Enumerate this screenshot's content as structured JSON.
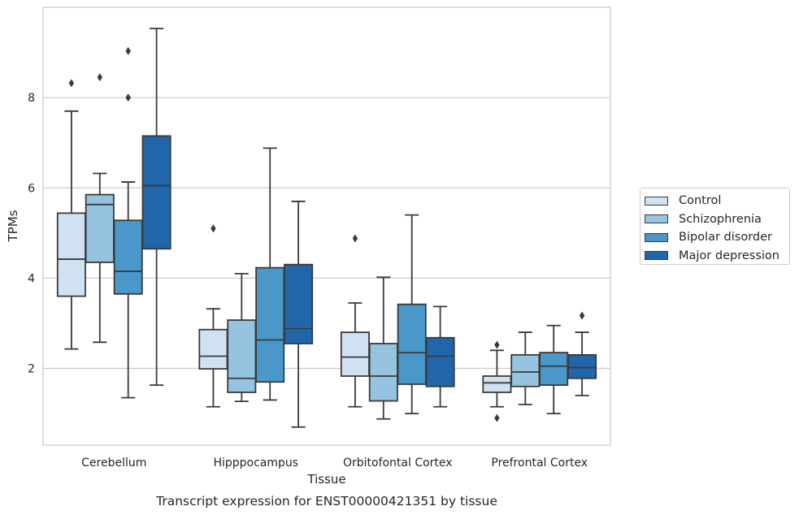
{
  "chart_data": {
    "type": "box",
    "caption": "Transcript expression for ENST00000421351 by tissue",
    "xlabel": "Tissue",
    "ylabel": "TPMs",
    "ylim": [
      0.3,
      10.0
    ],
    "yticks": [
      2,
      4,
      6,
      8
    ],
    "grid": "horizontal",
    "legend_position": "right",
    "categories": [
      "Cerebellum",
      "Hipppocampus",
      "Orbitofontal Cortex",
      "Prefrontal Cortex"
    ],
    "series": [
      {
        "name": "Control",
        "color": "#d0e1f2",
        "boxes": [
          {
            "whisker_low": 2.43,
            "q1": 3.6,
            "median": 4.42,
            "q3": 5.44,
            "whisker_high": 7.7,
            "outliers": [
              8.32
            ]
          },
          {
            "whisker_low": 1.15,
            "q1": 1.99,
            "median": 2.27,
            "q3": 2.86,
            "whisker_high": 3.32,
            "outliers": [
              5.1
            ]
          },
          {
            "whisker_low": 1.15,
            "q1": 1.83,
            "median": 2.25,
            "q3": 2.8,
            "whisker_high": 3.45,
            "outliers": [
              4.88
            ]
          },
          {
            "whisker_low": 1.15,
            "q1": 1.47,
            "median": 1.68,
            "q3": 1.83,
            "whisker_high": 2.4,
            "outliers": [
              2.52,
              0.9
            ]
          }
        ]
      },
      {
        "name": "Schizophrenia",
        "color": "#94c4df",
        "boxes": [
          {
            "whisker_low": 2.58,
            "q1": 4.35,
            "median": 5.63,
            "q3": 5.85,
            "whisker_high": 6.32,
            "outliers": [
              8.45
            ]
          },
          {
            "whisker_low": 1.27,
            "q1": 1.47,
            "median": 1.78,
            "q3": 3.07,
            "whisker_high": 4.1,
            "outliers": []
          },
          {
            "whisker_low": 0.88,
            "q1": 1.28,
            "median": 1.83,
            "q3": 2.55,
            "whisker_high": 4.02,
            "outliers": []
          },
          {
            "whisker_low": 1.2,
            "q1": 1.6,
            "median": 1.92,
            "q3": 2.3,
            "whisker_high": 2.8,
            "outliers": []
          }
        ]
      },
      {
        "name": "Bipolar disorder",
        "color": "#4a98c9",
        "boxes": [
          {
            "whisker_low": 1.35,
            "q1": 3.65,
            "median": 4.15,
            "q3": 5.28,
            "whisker_high": 6.13,
            "outliers": [
              9.03,
              8.0
            ]
          },
          {
            "whisker_low": 1.3,
            "q1": 1.7,
            "median": 2.63,
            "q3": 4.23,
            "whisker_high": 6.88,
            "outliers": []
          },
          {
            "whisker_low": 1.0,
            "q1": 1.65,
            "median": 2.35,
            "q3": 3.42,
            "whisker_high": 5.4,
            "outliers": []
          },
          {
            "whisker_low": 1.0,
            "q1": 1.63,
            "median": 2.05,
            "q3": 2.35,
            "whisker_high": 2.95,
            "outliers": []
          }
        ]
      },
      {
        "name": "Major depression",
        "color": "#2165ab",
        "boxes": [
          {
            "whisker_low": 1.63,
            "q1": 4.65,
            "median": 6.05,
            "q3": 7.15,
            "whisker_high": 9.53,
            "outliers": []
          },
          {
            "whisker_low": 0.7,
            "q1": 2.55,
            "median": 2.88,
            "q3": 4.3,
            "whisker_high": 5.7,
            "outliers": []
          },
          {
            "whisker_low": 1.15,
            "q1": 1.6,
            "median": 2.27,
            "q3": 2.68,
            "whisker_high": 3.37,
            "outliers": []
          },
          {
            "whisker_low": 1.4,
            "q1": 1.78,
            "median": 2.02,
            "q3": 2.3,
            "whisker_high": 2.8,
            "outliers": [
              3.17
            ]
          }
        ]
      }
    ]
  }
}
